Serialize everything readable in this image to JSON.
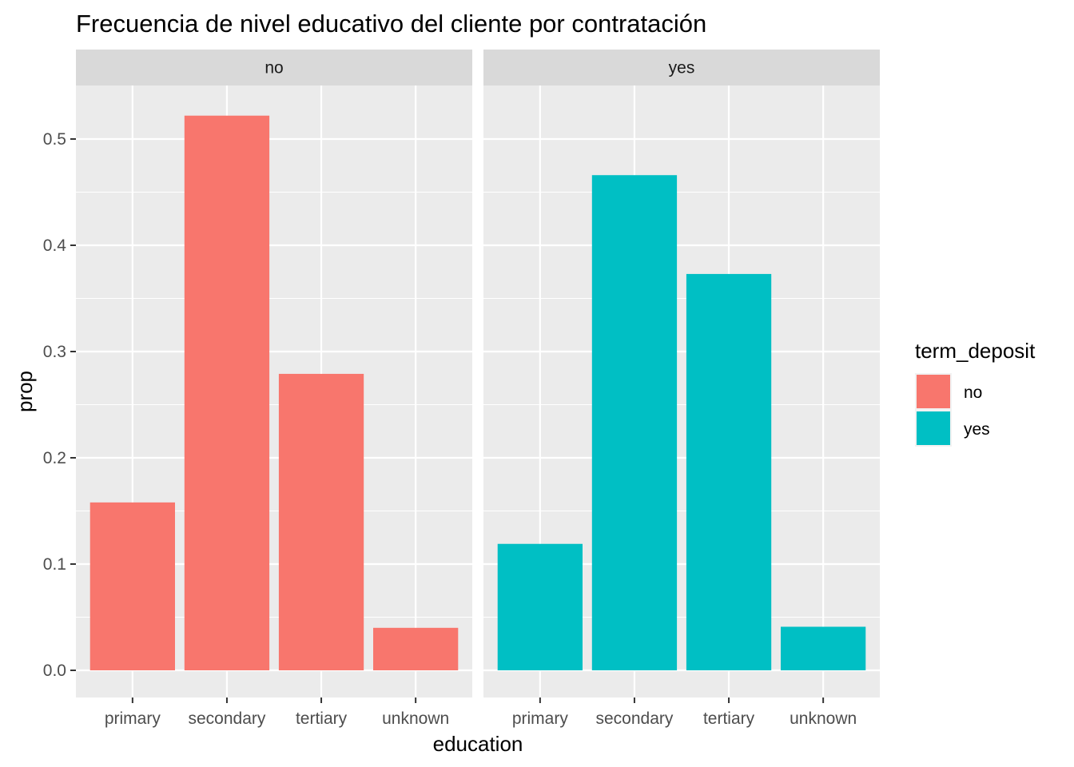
{
  "chart_data": {
    "type": "bar",
    "title": "Frecuencia de nivel educativo del cliente por contratación",
    "xlabel": "education",
    "ylabel": "prop",
    "ylim": [
      0,
      0.55
    ],
    "yticks": [
      "0.0",
      "0.1",
      "0.2",
      "0.3",
      "0.4",
      "0.5"
    ],
    "ytick_values": [
      0,
      0.1,
      0.2,
      0.3,
      0.4,
      0.5
    ],
    "categories": [
      "primary",
      "secondary",
      "tertiary",
      "unknown"
    ],
    "facets": [
      {
        "label": "no",
        "fill": "#F8766D",
        "values": [
          0.158,
          0.522,
          0.279,
          0.04
        ]
      },
      {
        "label": "yes",
        "fill": "#00BFC4",
        "values": [
          0.119,
          0.466,
          0.373,
          0.041
        ]
      }
    ],
    "legend": {
      "title": "term_deposit",
      "placement": "right",
      "entries": [
        {
          "label": "no",
          "color": "#F8766D"
        },
        {
          "label": "yes",
          "color": "#00BFC4"
        }
      ]
    },
    "colors": {
      "panel": "#EBEBEB",
      "strip": "#D9D9D9",
      "grid": "#FFFFFF"
    }
  }
}
